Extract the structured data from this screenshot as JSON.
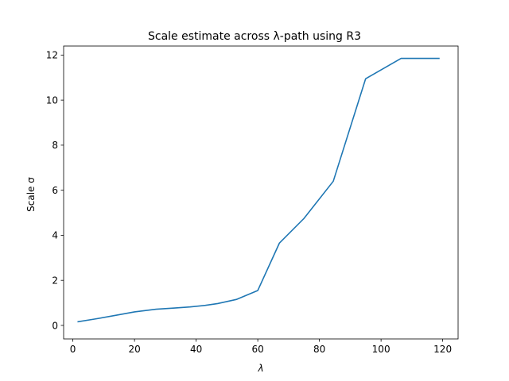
{
  "chart_data": {
    "type": "line",
    "title": "Scale estimate across λ-path using R3",
    "xlabel": "λ",
    "ylabel": "Scale σ",
    "xlim": [
      -3,
      125
    ],
    "ylim": [
      -0.6,
      12.4
    ],
    "xticks": [
      0,
      20,
      40,
      60,
      80,
      100,
      120
    ],
    "yticks": [
      0,
      2,
      4,
      6,
      8,
      10,
      12
    ],
    "grid": false,
    "series": [
      {
        "color": "#1f77b4",
        "x": [
          1.5,
          7,
          14,
          20,
          27,
          33,
          38,
          43,
          47,
          53,
          60,
          67,
          75,
          84.5,
          95,
          106.5,
          119
        ],
        "y": [
          0.16,
          0.28,
          0.45,
          0.6,
          0.72,
          0.77,
          0.82,
          0.89,
          0.97,
          1.15,
          1.55,
          3.65,
          4.75,
          6.4,
          10.95,
          11.85,
          11.85
        ]
      }
    ]
  }
}
